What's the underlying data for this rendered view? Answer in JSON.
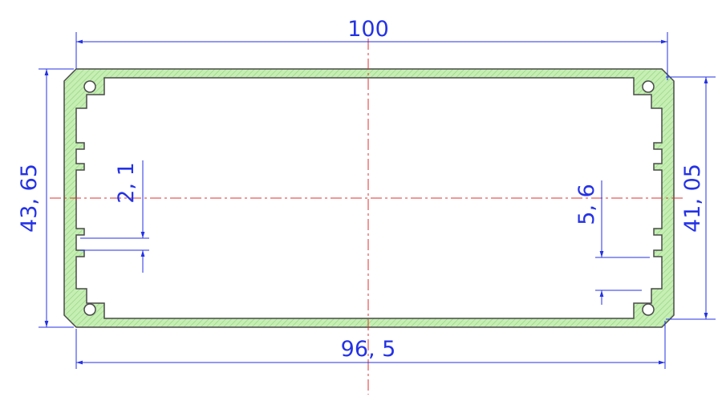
{
  "drawing": {
    "dimensions": {
      "overall_width": "100",
      "inner_width": "96, 5",
      "overall_height": "43, 65",
      "inner_height": "41, 05",
      "left_slot": "2, 1",
      "right_slot": "5, 6"
    },
    "colors": {
      "dimension": "#2432e6",
      "centerline": "#e03030",
      "profile_fill": "#c6efb4",
      "profile_stroke": "#4a4a4a"
    }
  }
}
